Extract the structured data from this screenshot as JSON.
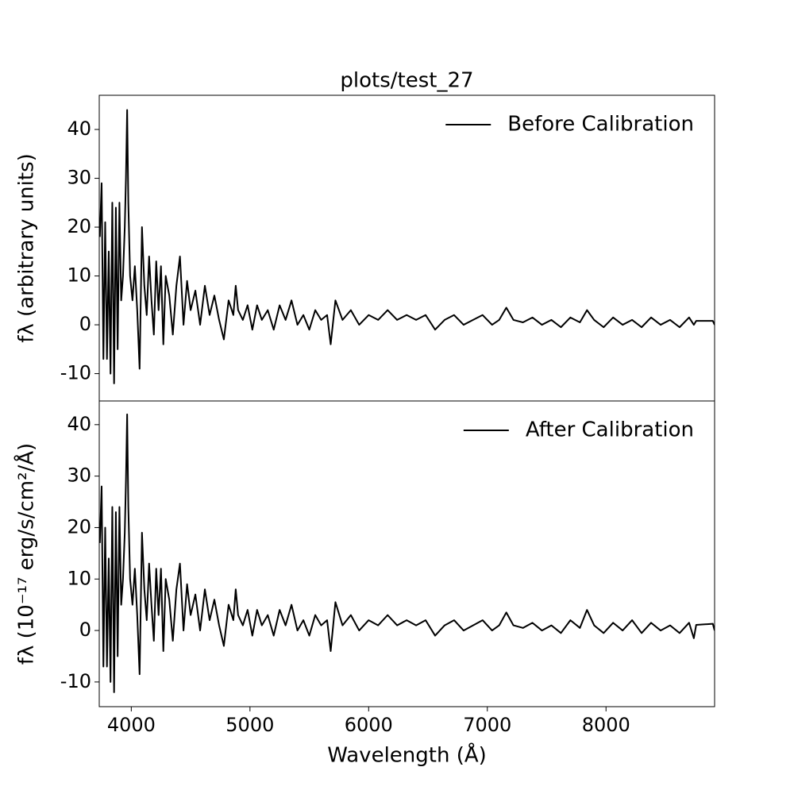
{
  "chart_data": [
    {
      "type": "line",
      "title": "plots/test_27",
      "ylabel": "fλ (arbitrary units)",
      "legend": "upper right",
      "xlim": [
        3730,
        8915
      ],
      "ylim": [
        -15.6,
        47
      ],
      "yticks": [
        -10,
        0,
        10,
        20,
        30,
        40
      ],
      "x": [
        3735,
        3750,
        3765,
        3780,
        3795,
        3810,
        3825,
        3840,
        3855,
        3870,
        3885,
        3900,
        3915,
        3930,
        3945,
        3955,
        3965,
        3975,
        3990,
        4010,
        4030,
        4050,
        4070,
        4090,
        4110,
        4130,
        4150,
        4170,
        4190,
        4210,
        4230,
        4250,
        4270,
        4290,
        4320,
        4350,
        4380,
        4410,
        4440,
        4470,
        4500,
        4540,
        4580,
        4620,
        4660,
        4700,
        4740,
        4780,
        4820,
        4860,
        4880,
        4900,
        4940,
        4980,
        5020,
        5060,
        5100,
        5150,
        5200,
        5250,
        5300,
        5350,
        5400,
        5450,
        5500,
        5550,
        5600,
        5650,
        5680,
        5720,
        5780,
        5850,
        5920,
        6000,
        6080,
        6160,
        6240,
        6320,
        6400,
        6480,
        6560,
        6640,
        6720,
        6800,
        6880,
        6960,
        7040,
        7100,
        7160,
        7220,
        7300,
        7380,
        7460,
        7540,
        7620,
        7700,
        7780,
        7840,
        7900,
        7980,
        8060,
        8140,
        8220,
        8300,
        8380,
        8460,
        8540,
        8620,
        8700,
        8740,
        8760,
        8900,
        8915
      ],
      "series": [
        {
          "name": "Before Calibration",
          "color": "#000000",
          "values": [
            18,
            29,
            -7,
            21,
            -7,
            15,
            -10,
            25,
            -12,
            24,
            -5,
            25,
            5,
            10,
            20,
            30,
            44,
            25,
            10,
            5,
            12,
            3,
            -9,
            20,
            8,
            2,
            14,
            5,
            -2,
            13,
            3,
            12,
            -4,
            10,
            6,
            -2,
            8,
            14,
            0,
            9,
            3,
            7,
            0,
            8,
            2,
            6,
            1,
            -3,
            5,
            2,
            8,
            3,
            1,
            4,
            -1,
            4,
            1,
            3,
            -1,
            4,
            1,
            5,
            0,
            2,
            -1,
            3,
            1,
            2,
            -4,
            5,
            1,
            3,
            0,
            2,
            1,
            3,
            1,
            2,
            1,
            2,
            -1,
            1,
            2,
            0,
            1,
            2,
            0,
            1,
            3.5,
            1,
            0.5,
            1.5,
            0,
            1,
            -0.5,
            1.5,
            0.5,
            3,
            1,
            -0.5,
            1.5,
            0,
            1,
            -0.5,
            1.5,
            0,
            1,
            -0.5,
            1.5,
            0,
            0.8,
            0.8,
            0
          ]
        }
      ]
    },
    {
      "type": "line",
      "ylabel": "fλ (10⁻¹⁷ erg/s/cm²/Å)",
      "xlabel": "Wavelength (Å)",
      "legend": "upper right",
      "xlim": [
        3730,
        8915
      ],
      "ylim": [
        -14.8,
        44.6
      ],
      "yticks": [
        -10,
        0,
        10,
        20,
        30,
        40
      ],
      "xticks": [
        4000,
        5000,
        6000,
        7000,
        8000
      ],
      "x": [
        3735,
        3750,
        3765,
        3780,
        3795,
        3810,
        3825,
        3840,
        3855,
        3870,
        3885,
        3900,
        3915,
        3930,
        3945,
        3955,
        3965,
        3975,
        3990,
        4010,
        4030,
        4050,
        4070,
        4090,
        4110,
        4130,
        4150,
        4170,
        4190,
        4210,
        4230,
        4250,
        4270,
        4290,
        4320,
        4350,
        4380,
        4410,
        4440,
        4470,
        4500,
        4540,
        4580,
        4620,
        4660,
        4700,
        4740,
        4780,
        4820,
        4860,
        4880,
        4900,
        4940,
        4980,
        5020,
        5060,
        5100,
        5150,
        5200,
        5250,
        5300,
        5350,
        5400,
        5450,
        5500,
        5550,
        5600,
        5650,
        5680,
        5720,
        5780,
        5850,
        5920,
        6000,
        6080,
        6160,
        6240,
        6320,
        6400,
        6480,
        6560,
        6640,
        6720,
        6800,
        6880,
        6960,
        7040,
        7100,
        7160,
        7220,
        7300,
        7380,
        7460,
        7540,
        7620,
        7700,
        7780,
        7840,
        7900,
        7980,
        8060,
        8140,
        8220,
        8300,
        8380,
        8460,
        8540,
        8620,
        8700,
        8740,
        8760,
        8900,
        8915
      ],
      "series": [
        {
          "name": "After Calibration",
          "color": "#000000",
          "values": [
            17,
            28,
            -7,
            20,
            -7,
            14,
            -10,
            24,
            -12,
            23,
            -5,
            24,
            5,
            10,
            19,
            29,
            42,
            24,
            10,
            5,
            12,
            3,
            -8.5,
            19,
            8,
            2,
            13,
            5,
            -2,
            12,
            3,
            12,
            -4,
            10,
            6,
            -2,
            8,
            13,
            0,
            9,
            3,
            7,
            0,
            8,
            2,
            6,
            1,
            -3,
            5,
            2,
            8,
            3,
            1,
            4,
            -1,
            4,
            1,
            3,
            -1,
            4,
            1,
            5,
            0,
            2,
            -1,
            3,
            1,
            2,
            -4,
            5.5,
            1,
            3,
            0,
            2,
            1,
            3,
            1,
            2,
            1,
            2,
            -1,
            1,
            2,
            0,
            1,
            2,
            0,
            1,
            3.5,
            1,
            0.5,
            1.5,
            0,
            1,
            -0.5,
            2,
            0.5,
            4,
            1,
            -0.5,
            1.5,
            0,
            2,
            -0.5,
            1.5,
            0,
            1,
            -0.5,
            1.5,
            -1.5,
            1.1,
            1.3,
            0
          ]
        }
      ]
    }
  ]
}
